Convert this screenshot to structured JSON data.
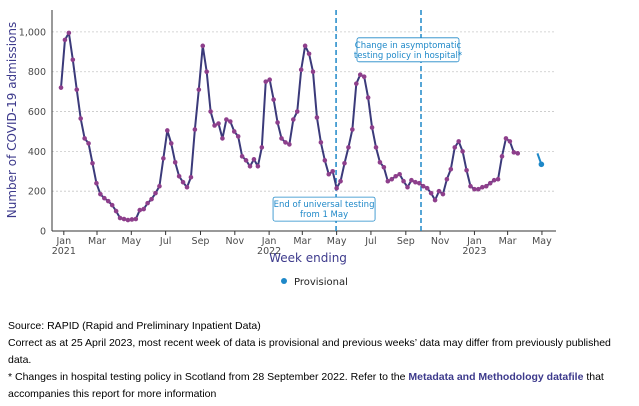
{
  "chart_data": {
    "type": "line",
    "ylabel": "Number of COVID-19 admissions",
    "xlabel": "Week ending",
    "ylim": [
      0,
      1100
    ],
    "yticks": [
      0,
      200,
      400,
      600,
      800,
      1000
    ],
    "ytick_labels": [
      "0",
      "200",
      "400",
      "600",
      "800",
      "1,000"
    ],
    "xlim": [
      "2020-12-11",
      "2023-05-26"
    ],
    "xticks": [
      {
        "date": "2021-01-01",
        "label": "Jan",
        "year": "2021"
      },
      {
        "date": "2021-03-01",
        "label": "Mar",
        "year": ""
      },
      {
        "date": "2021-05-01",
        "label": "May",
        "year": ""
      },
      {
        "date": "2021-07-01",
        "label": "Jul",
        "year": ""
      },
      {
        "date": "2021-09-01",
        "label": "Sep",
        "year": ""
      },
      {
        "date": "2021-11-01",
        "label": "Nov",
        "year": ""
      },
      {
        "date": "2022-01-01",
        "label": "Jan",
        "year": "2022"
      },
      {
        "date": "2022-03-01",
        "label": "Mar",
        "year": ""
      },
      {
        "date": "2022-05-01",
        "label": "May",
        "year": ""
      },
      {
        "date": "2022-07-01",
        "label": "Jul",
        "year": ""
      },
      {
        "date": "2022-09-01",
        "label": "Sep",
        "year": ""
      },
      {
        "date": "2022-11-01",
        "label": "Nov",
        "year": ""
      },
      {
        "date": "2023-01-01",
        "label": "Jan",
        "year": "2023"
      },
      {
        "date": "2023-03-01",
        "label": "Mar",
        "year": ""
      },
      {
        "date": "2023-05-01",
        "label": "May",
        "year": ""
      }
    ],
    "grid": true,
    "series": [
      {
        "start": "2020-12-27",
        "values": [
          720,
          960,
          995,
          860,
          710,
          565,
          465,
          440,
          340,
          240,
          185,
          165,
          150,
          130,
          100,
          65,
          60,
          55,
          58,
          60,
          105,
          110,
          140,
          160,
          190,
          225,
          365,
          505,
          440,
          345,
          275,
          245,
          220,
          270,
          510,
          710,
          930,
          800,
          600,
          530,
          540,
          465,
          560,
          550,
          500,
          475,
          375,
          355,
          325,
          360,
          325,
          420,
          750,
          760,
          660,
          545,
          465,
          445,
          435,
          560,
          600,
          810,
          930,
          890,
          800,
          570,
          445,
          355,
          285,
          300,
          215,
          250,
          340,
          420,
          510,
          740,
          785,
          775,
          670,
          520,
          420,
          345,
          320,
          250,
          260,
          275,
          285,
          250,
          220,
          255,
          245,
          240,
          225,
          215,
          190,
          155,
          200,
          185,
          260,
          310,
          420,
          450,
          400,
          305,
          225,
          210,
          210,
          220,
          225,
          240,
          255,
          260,
          375,
          465,
          450,
          395,
          390
        ],
        "color": "#3b3a7a",
        "marker_color": "#8e3f8c"
      },
      {
        "name": "Provisional",
        "points": [
          [
            "2023-04-23",
            390
          ],
          [
            "2023-04-30",
            335
          ]
        ],
        "color": "#1e88c8"
      }
    ],
    "annotations": [
      {
        "date": "2022-04-30",
        "text": [
          "End of universal testing",
          "from 1 May"
        ],
        "y": 100
      },
      {
        "date": "2022-09-28",
        "text": [
          "Change in asymptomatic",
          "testing policy in hospital*"
        ],
        "y": 900
      }
    ],
    "legend": {
      "label": "Provisional",
      "placement": "bottom"
    }
  },
  "notes": {
    "source": "Source: RAPID (Rapid and Preliminary Inpatient Data)",
    "correct": "Correct as at 25 April 2023, most recent week of data is provisional and previous weeks’ data may differ from previously published data.",
    "footnote_start": "* Changes in hospital testing policy in Scotland from 28 September 2022. Refer to the ",
    "footnote_link": "Metadata and Methodology datafile",
    "footnote_end": " that accompanies this report for more information"
  }
}
